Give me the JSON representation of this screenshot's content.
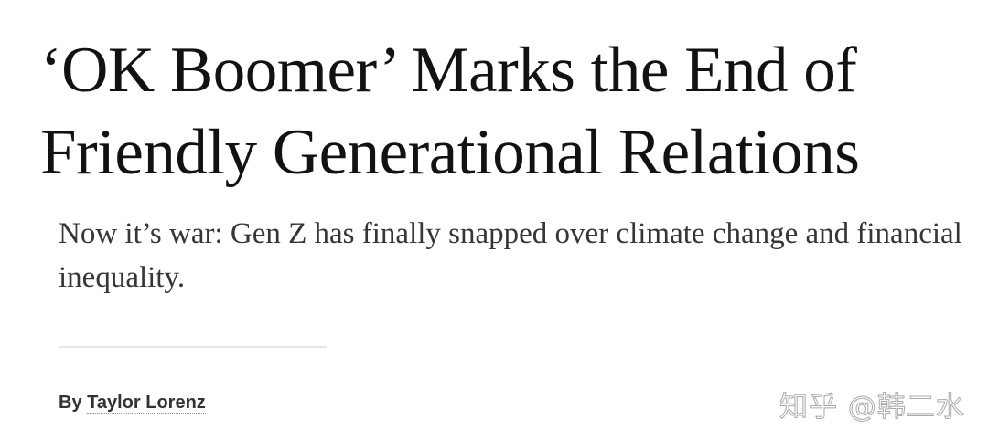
{
  "article": {
    "headline": "‘OK Boomer’ Marks the End of Friendly Generational Relations",
    "summary": "Now it’s war: Gen Z has finally snapped over climate change and financial inequality.",
    "byline_prefix": "By",
    "author": "Taylor Lorenz"
  },
  "watermark": "知乎 @韩二水"
}
